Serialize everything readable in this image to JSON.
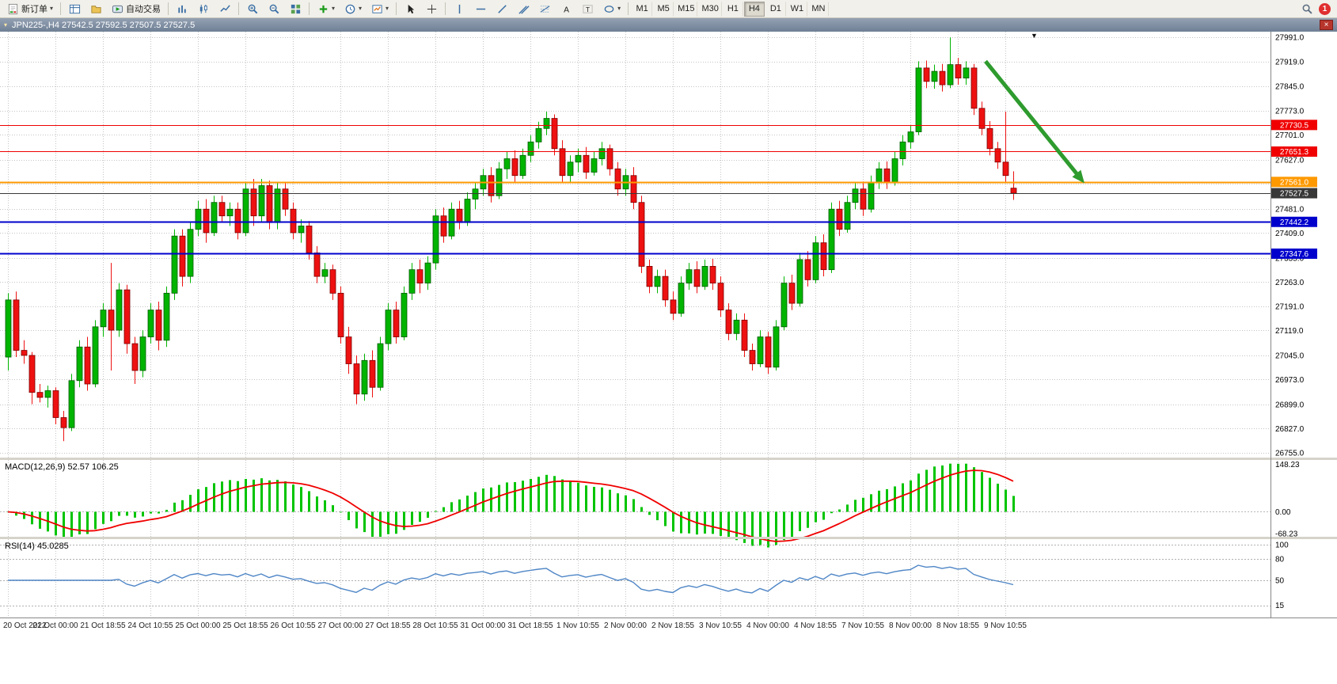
{
  "toolbar": {
    "new_order": "新订单",
    "autotrading": "自动交易",
    "timeframes": [
      "M1",
      "M5",
      "M15",
      "M30",
      "H1",
      "H4",
      "D1",
      "W1",
      "MN"
    ],
    "active_timeframe": "H4",
    "notification_count": "1"
  },
  "chart_window": {
    "title": "JPN225-,H4 27542.5 27592.5 27507.5 27527.5"
  },
  "chart_data": [
    {
      "type": "candlestick",
      "symbol": "JPN225-",
      "timeframe": "H4",
      "ylim": [
        26741,
        28008
      ],
      "y_ticks": [
        27991,
        27919,
        27845,
        27773,
        27701,
        27627,
        27555,
        27481,
        27409,
        27335,
        27263,
        27191,
        27119,
        27045,
        26973,
        26899,
        26827,
        26755
      ],
      "x_labels": [
        "20 Oct 2022",
        "21 Oct 00:00",
        "21 Oct 18:55",
        "24 Oct 10:55",
        "25 Oct 00:00",
        "25 Oct 18:55",
        "26 Oct 10:55",
        "27 Oct 00:00",
        "27 Oct 18:55",
        "28 Oct 10:55",
        "31 Oct 00:00",
        "31 Oct 18:55",
        "1 Nov 10:55",
        "2 Nov 00:00",
        "2 Nov 18:55",
        "3 Nov 10:55",
        "4 Nov 00:00",
        "4 Nov 18:55",
        "7 Nov 10:55",
        "8 Nov 00:00",
        "8 Nov 18:55",
        "9 Nov 10:55"
      ],
      "x_label_every": 6,
      "colors": {
        "up": "#00b400",
        "down": "#ee1111",
        "grid": "#c4c4c4"
      },
      "hlines": [
        {
          "price": 27730.5,
          "label": "27730.5",
          "color": "#f00000",
          "width": 1
        },
        {
          "price": 27651.3,
          "label": "27651.3",
          "color": "#f00000",
          "width": 1
        },
        {
          "price": 27561.0,
          "label": "27561.0",
          "color": "#ff9900",
          "width": 2
        },
        {
          "price": 27527.5,
          "label": "27527.5",
          "color": "#383838",
          "width": 1
        },
        {
          "price": 27442.2,
          "label": "27442.2",
          "color": "#0000cd",
          "width": 2
        },
        {
          "price": 27347.6,
          "label": "27347.6",
          "color": "#0000cd",
          "width": 2
        }
      ],
      "annotations": [
        {
          "type": "arrow",
          "from": {
            "index": 123.5,
            "price": 27920
          },
          "to": {
            "index": 136,
            "price": 27557
          },
          "color": "#2e9b2e",
          "width": 5
        }
      ],
      "ohlc": [
        [
          27040,
          27230,
          27000,
          27210
        ],
        [
          27210,
          27235,
          27040,
          27060
        ],
        [
          27060,
          27090,
          27020,
          27045
        ],
        [
          27045,
          27055,
          26900,
          26935
        ],
        [
          26935,
          26960,
          26905,
          26920
        ],
        [
          26920,
          26955,
          26890,
          26940
        ],
        [
          26940,
          26950,
          26840,
          26860
        ],
        [
          26860,
          26880,
          26790,
          26830
        ],
        [
          26830,
          26990,
          26820,
          26970
        ],
        [
          26970,
          27090,
          26950,
          27070
        ],
        [
          27070,
          27100,
          26940,
          26960
        ],
        [
          26960,
          27150,
          26950,
          27130
        ],
        [
          27130,
          27200,
          27100,
          27180
        ],
        [
          27180,
          27320,
          27000,
          27120
        ],
        [
          27120,
          27260,
          27100,
          27240
        ],
        [
          27240,
          27255,
          27050,
          27080
        ],
        [
          27080,
          27100,
          26960,
          27000
        ],
        [
          27000,
          27120,
          26980,
          27100
        ],
        [
          27100,
          27200,
          27080,
          27180
        ],
        [
          27180,
          27205,
          27060,
          27090
        ],
        [
          27090,
          27250,
          27070,
          27230
        ],
        [
          27230,
          27420,
          27210,
          27400
        ],
        [
          27400,
          27420,
          27250,
          27280
        ],
        [
          27280,
          27440,
          27260,
          27420
        ],
        [
          27420,
          27505,
          27400,
          27480
        ],
        [
          27480,
          27510,
          27380,
          27410
        ],
        [
          27410,
          27520,
          27400,
          27500
        ],
        [
          27500,
          27520,
          27440,
          27460
        ],
        [
          27460,
          27500,
          27430,
          27480
        ],
        [
          27480,
          27500,
          27390,
          27410
        ],
        [
          27410,
          27560,
          27400,
          27540
        ],
        [
          27540,
          27570,
          27430,
          27460
        ],
        [
          27460,
          27570,
          27440,
          27550
        ],
        [
          27550,
          27565,
          27420,
          27440
        ],
        [
          27440,
          27560,
          27420,
          27540
        ],
        [
          27540,
          27558,
          27460,
          27480
        ],
        [
          27480,
          27500,
          27390,
          27410
        ],
        [
          27410,
          27450,
          27380,
          27430
        ],
        [
          27430,
          27445,
          27330,
          27350
        ],
        [
          27350,
          27370,
          27260,
          27280
        ],
        [
          27280,
          27320,
          27260,
          27300
        ],
        [
          27300,
          27315,
          27210,
          27230
        ],
        [
          27230,
          27250,
          27080,
          27100
        ],
        [
          27100,
          27130,
          26990,
          27020
        ],
        [
          27020,
          27045,
          26900,
          26930
        ],
        [
          26930,
          27050,
          26910,
          27030
        ],
        [
          27030,
          27060,
          26920,
          26950
        ],
        [
          26950,
          27100,
          26940,
          27080
        ],
        [
          27080,
          27200,
          27060,
          27180
        ],
        [
          27180,
          27205,
          27080,
          27100
        ],
        [
          27100,
          27250,
          27090,
          27230
        ],
        [
          27230,
          27320,
          27210,
          27300
        ],
        [
          27300,
          27330,
          27230,
          27260
        ],
        [
          27260,
          27340,
          27240,
          27320
        ],
        [
          27320,
          27480,
          27300,
          27460
        ],
        [
          27460,
          27485,
          27380,
          27400
        ],
        [
          27400,
          27500,
          27390,
          27480
        ],
        [
          27480,
          27505,
          27420,
          27440
        ],
        [
          27440,
          27530,
          27430,
          27510
        ],
        [
          27510,
          27560,
          27480,
          27540
        ],
        [
          27540,
          27600,
          27520,
          27580
        ],
        [
          27580,
          27605,
          27500,
          27520
        ],
        [
          27520,
          27620,
          27510,
          27600
        ],
        [
          27600,
          27650,
          27570,
          27630
        ],
        [
          27630,
          27655,
          27560,
          27580
        ],
        [
          27580,
          27660,
          27570,
          27640
        ],
        [
          27640,
          27700,
          27620,
          27680
        ],
        [
          27680,
          27740,
          27660,
          27720
        ],
        [
          27720,
          27770,
          27700,
          27750
        ],
        [
          27750,
          27762,
          27640,
          27660
        ],
        [
          27660,
          27685,
          27560,
          27580
        ],
        [
          27580,
          27640,
          27560,
          27620
        ],
        [
          27620,
          27660,
          27590,
          27640
        ],
        [
          27640,
          27665,
          27570,
          27590
        ],
        [
          27590,
          27650,
          27580,
          27630
        ],
        [
          27630,
          27680,
          27610,
          27660
        ],
        [
          27660,
          27672,
          27580,
          27600
        ],
        [
          27600,
          27620,
          27520,
          27540
        ],
        [
          27540,
          27600,
          27520,
          27580
        ],
        [
          27580,
          27605,
          27480,
          27500
        ],
        [
          27500,
          27520,
          27290,
          27310
        ],
        [
          27310,
          27330,
          27230,
          27250
        ],
        [
          27250,
          27300,
          27230,
          27280
        ],
        [
          27280,
          27300,
          27190,
          27210
        ],
        [
          27210,
          27235,
          27150,
          27170
        ],
        [
          27170,
          27280,
          27160,
          27260
        ],
        [
          27260,
          27320,
          27240,
          27300
        ],
        [
          27300,
          27325,
          27230,
          27250
        ],
        [
          27250,
          27330,
          27240,
          27310
        ],
        [
          27310,
          27332,
          27240,
          27260
        ],
        [
          27260,
          27280,
          27160,
          27180
        ],
        [
          27180,
          27200,
          27090,
          27110
        ],
        [
          27110,
          27170,
          27090,
          27150
        ],
        [
          27150,
          27170,
          27040,
          27060
        ],
        [
          27060,
          27080,
          27000,
          27020
        ],
        [
          27020,
          27120,
          27010,
          27100
        ],
        [
          27100,
          27115,
          26990,
          27010
        ],
        [
          27010,
          27150,
          27000,
          27130
        ],
        [
          27130,
          27280,
          27120,
          27260
        ],
        [
          27260,
          27285,
          27180,
          27200
        ],
        [
          27200,
          27350,
          27190,
          27330
        ],
        [
          27330,
          27355,
          27250,
          27270
        ],
        [
          27270,
          27400,
          27260,
          27380
        ],
        [
          27380,
          27405,
          27280,
          27300
        ],
        [
          27300,
          27500,
          27290,
          27480
        ],
        [
          27480,
          27505,
          27400,
          27420
        ],
        [
          27420,
          27520,
          27410,
          27500
        ],
        [
          27500,
          27560,
          27480,
          27540
        ],
        [
          27540,
          27562,
          27460,
          27480
        ],
        [
          27480,
          27580,
          27470,
          27560
        ],
        [
          27560,
          27620,
          27540,
          27600
        ],
        [
          27600,
          27622,
          27540,
          27560
        ],
        [
          27560,
          27650,
          27550,
          27630
        ],
        [
          27630,
          27700,
          27610,
          27680
        ],
        [
          27680,
          27730,
          27660,
          27710
        ],
        [
          27710,
          27920,
          27700,
          27900
        ],
        [
          27900,
          27922,
          27840,
          27860
        ],
        [
          27860,
          27910,
          27838,
          27890
        ],
        [
          27890,
          27912,
          27830,
          27850
        ],
        [
          27850,
          27991,
          27840,
          27910
        ],
        [
          27910,
          27930,
          27850,
          27870
        ],
        [
          27870,
          27920,
          27850,
          27900
        ],
        [
          27900,
          27912,
          27760,
          27780
        ],
        [
          27780,
          27800,
          27700,
          27720
        ],
        [
          27720,
          27742,
          27640,
          27660
        ],
        [
          27660,
          27680,
          27600,
          27620
        ],
        [
          27620,
          27770,
          27560,
          27580
        ],
        [
          27542.5,
          27592.5,
          27507.5,
          27527.5
        ]
      ]
    },
    {
      "type": "bar",
      "name": "MACD",
      "label": "MACD(12,26,9) 52.57 106.25",
      "params": [
        12,
        26,
        9
      ],
      "derived_from": "closes of chart_data[0].ohlc",
      "current_values": {
        "macd": 52.57,
        "signal": 106.25
      },
      "vlim": [
        -78,
        162
      ],
      "y_ticks": [
        148.23,
        0,
        -68.23
      ],
      "y_tick_labels": [
        "148.23",
        "0.00",
        "-68.23"
      ],
      "colors": {
        "histogram": "#00c400",
        "signal": "#f00000"
      }
    },
    {
      "type": "line",
      "name": "RSI",
      "label": "RSI(14) 45.0285",
      "period": 14,
      "value": 45.0285,
      "derived_from": "closes of chart_data[0].ohlc",
      "y_ticks": [
        100,
        80,
        50,
        15
      ],
      "color": "#4f86c6"
    }
  ]
}
